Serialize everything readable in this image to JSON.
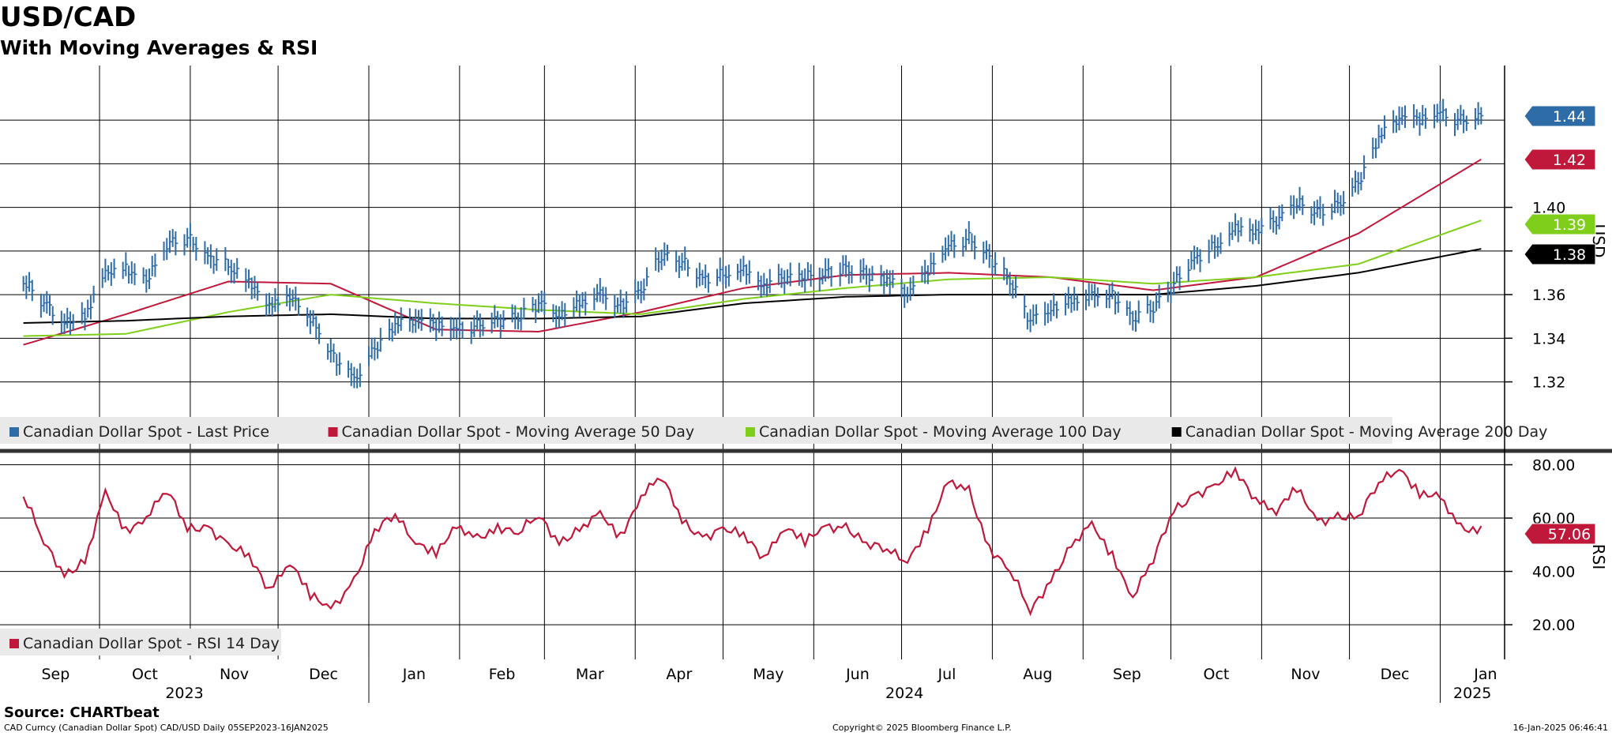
{
  "header": {
    "title": "USD/CAD",
    "subtitle": "With Moving Averages & RSI"
  },
  "footer": {
    "source": "Source: CHARTbeat",
    "security": "CAD Curncy (Canadian Dollar Spot) CAD/USD  Daily 05SEP2023-16JAN2025",
    "copyright": "Copyright© 2025 Bloomberg Finance L.P.",
    "timestamp": "16-Jan-2025 06:46:41"
  },
  "colors": {
    "price": "#2e6ca8",
    "ma50": "#c0183a",
    "ma100": "#7fcf1a",
    "ma200": "#000000",
    "rsi": "#c0183a"
  },
  "chart_data": [
    {
      "type": "line",
      "panel": "price",
      "ylabel": "USD",
      "ylim": [
        1.305,
        1.465
      ],
      "yticks": [
        1.32,
        1.34,
        1.36,
        1.38,
        1.4
      ],
      "ytick_labels": [
        "1.32",
        "1.34",
        "1.36",
        "1.38",
        "1.40"
      ],
      "grid": true,
      "legend_position": "bottom-left",
      "legend": [
        {
          "label": "Canadian Dollar Spot - Last Price",
          "color": "#2e6ca8"
        },
        {
          "label": "Canadian Dollar Spot - Moving Average 50 Day",
          "color": "#c0183a"
        },
        {
          "label": "Canadian Dollar Spot - Moving Average 100 Day",
          "color": "#7fcf1a"
        },
        {
          "label": "Canadian Dollar Spot - Moving Average 200 Day",
          "color": "#000000"
        }
      ],
      "last_value_tags": [
        {
          "label": "1.44",
          "value": 1.442,
          "color": "#2e6ca8"
        },
        {
          "label": "1.42",
          "value": 1.422,
          "color": "#c0183a"
        },
        {
          "label": "1.39",
          "value": 1.394,
          "color": "#7fcf1a"
        },
        {
          "label": "1.38",
          "value": 1.381,
          "color": "#000000"
        }
      ],
      "series": [
        {
          "name": "Canadian Dollar Spot - Last Price",
          "style": "bars",
          "x": [
            "2023-09-05",
            "2023-09-12",
            "2023-09-19",
            "2023-09-26",
            "2023-10-03",
            "2023-10-10",
            "2023-10-17",
            "2023-10-24",
            "2023-10-31",
            "2023-11-07",
            "2023-11-14",
            "2023-11-21",
            "2023-11-28",
            "2023-12-05",
            "2023-12-12",
            "2023-12-19",
            "2023-12-27",
            "2024-01-03",
            "2024-01-10",
            "2024-01-17",
            "2024-01-24",
            "2024-01-31",
            "2024-02-07",
            "2024-02-14",
            "2024-02-21",
            "2024-02-28",
            "2024-03-06",
            "2024-03-13",
            "2024-03-20",
            "2024-03-27",
            "2024-04-03",
            "2024-04-10",
            "2024-04-17",
            "2024-04-24",
            "2024-05-01",
            "2024-05-08",
            "2024-05-15",
            "2024-05-22",
            "2024-05-29",
            "2024-06-05",
            "2024-06-12",
            "2024-06-19",
            "2024-06-26",
            "2024-07-03",
            "2024-07-10",
            "2024-07-17",
            "2024-07-24",
            "2024-07-31",
            "2024-08-07",
            "2024-08-14",
            "2024-08-21",
            "2024-08-28",
            "2024-09-04",
            "2024-09-11",
            "2024-09-18",
            "2024-09-25",
            "2024-10-02",
            "2024-10-09",
            "2024-10-16",
            "2024-10-23",
            "2024-10-30",
            "2024-11-06",
            "2024-11-13",
            "2024-11-20",
            "2024-11-27",
            "2024-12-04",
            "2024-12-11",
            "2024-12-18",
            "2024-12-25",
            "2025-01-01",
            "2025-01-08",
            "2025-01-15"
          ],
          "y": [
            1.365,
            1.356,
            1.349,
            1.35,
            1.368,
            1.372,
            1.368,
            1.382,
            1.386,
            1.379,
            1.372,
            1.364,
            1.356,
            1.361,
            1.348,
            1.333,
            1.322,
            1.334,
            1.345,
            1.35,
            1.347,
            1.343,
            1.346,
            1.349,
            1.348,
            1.356,
            1.352,
            1.356,
            1.359,
            1.355,
            1.363,
            1.377,
            1.375,
            1.369,
            1.368,
            1.37,
            1.365,
            1.369,
            1.367,
            1.37,
            1.373,
            1.368,
            1.366,
            1.362,
            1.372,
            1.381,
            1.386,
            1.378,
            1.365,
            1.348,
            1.355,
            1.357,
            1.358,
            1.36,
            1.35,
            1.353,
            1.365,
            1.378,
            1.381,
            1.389,
            1.39,
            1.395,
            1.401,
            1.398,
            1.402,
            1.41,
            1.431,
            1.443,
            1.441,
            1.442,
            1.44,
            1.442
          ]
        },
        {
          "name": "Canadian Dollar Spot - Moving Average 50 Day",
          "x": [
            "2023-09-05",
            "2023-10-10",
            "2023-11-14",
            "2023-12-19",
            "2024-01-24",
            "2024-02-28",
            "2024-04-03",
            "2024-05-08",
            "2024-06-12",
            "2024-07-17",
            "2024-08-21",
            "2024-09-25",
            "2024-10-30",
            "2024-12-04",
            "2025-01-15"
          ],
          "y": [
            1.337,
            1.351,
            1.366,
            1.365,
            1.344,
            1.343,
            1.352,
            1.363,
            1.369,
            1.37,
            1.368,
            1.362,
            1.368,
            1.388,
            1.422
          ]
        },
        {
          "name": "Canadian Dollar Spot - Moving Average 100 Day",
          "x": [
            "2023-09-05",
            "2023-10-10",
            "2023-11-14",
            "2023-12-19",
            "2024-01-24",
            "2024-02-28",
            "2024-04-03",
            "2024-05-08",
            "2024-06-12",
            "2024-07-17",
            "2024-08-21",
            "2024-09-25",
            "2024-10-30",
            "2024-12-04",
            "2025-01-15"
          ],
          "y": [
            1.341,
            1.342,
            1.352,
            1.36,
            1.356,
            1.353,
            1.351,
            1.358,
            1.363,
            1.367,
            1.368,
            1.365,
            1.368,
            1.374,
            1.394
          ]
        },
        {
          "name": "Canadian Dollar Spot - Moving Average 200 Day",
          "x": [
            "2023-09-05",
            "2023-10-10",
            "2023-11-14",
            "2023-12-19",
            "2024-01-24",
            "2024-02-28",
            "2024-04-03",
            "2024-05-08",
            "2024-06-12",
            "2024-07-17",
            "2024-08-21",
            "2024-09-25",
            "2024-10-30",
            "2024-12-04",
            "2025-01-15"
          ],
          "y": [
            1.347,
            1.348,
            1.35,
            1.351,
            1.349,
            1.349,
            1.35,
            1.356,
            1.359,
            1.36,
            1.36,
            1.36,
            1.364,
            1.37,
            1.381
          ]
        }
      ]
    },
    {
      "type": "line",
      "panel": "rsi",
      "ylabel": "RSI",
      "ylim": [
        7,
        84
      ],
      "yticks": [
        20,
        40,
        60,
        80
      ],
      "ytick_labels": [
        "20.00",
        "40.00",
        "60.00",
        "80.00"
      ],
      "grid": true,
      "legend_position": "bottom-left",
      "legend": [
        {
          "label": "Canadian Dollar Spot - RSI 14 Day",
          "color": "#c0183a"
        }
      ],
      "last_value_tags": [
        {
          "label": "57.06",
          "value": 57.06,
          "color": "#c0183a"
        }
      ],
      "series": [
        {
          "name": "Canadian Dollar Spot - RSI 14 Day",
          "x": [
            "2023-09-05",
            "2023-09-12",
            "2023-09-19",
            "2023-09-26",
            "2023-10-03",
            "2023-10-10",
            "2023-10-17",
            "2023-10-24",
            "2023-10-31",
            "2023-11-07",
            "2023-11-14",
            "2023-11-21",
            "2023-11-28",
            "2023-12-05",
            "2023-12-12",
            "2023-12-19",
            "2023-12-27",
            "2024-01-03",
            "2024-01-10",
            "2024-01-17",
            "2024-01-24",
            "2024-01-31",
            "2024-02-07",
            "2024-02-14",
            "2024-02-21",
            "2024-02-28",
            "2024-03-06",
            "2024-03-13",
            "2024-03-20",
            "2024-03-27",
            "2024-04-03",
            "2024-04-10",
            "2024-04-17",
            "2024-04-24",
            "2024-05-01",
            "2024-05-08",
            "2024-05-15",
            "2024-05-22",
            "2024-05-29",
            "2024-06-05",
            "2024-06-12",
            "2024-06-19",
            "2024-06-26",
            "2024-07-03",
            "2024-07-10",
            "2024-07-17",
            "2024-07-24",
            "2024-07-31",
            "2024-08-07",
            "2024-08-14",
            "2024-08-21",
            "2024-08-28",
            "2024-09-04",
            "2024-09-11",
            "2024-09-18",
            "2024-09-25",
            "2024-10-02",
            "2024-10-09",
            "2024-10-16",
            "2024-10-23",
            "2024-10-30",
            "2024-11-06",
            "2024-11-13",
            "2024-11-20",
            "2024-11-27",
            "2024-12-04",
            "2024-12-11",
            "2024-12-18",
            "2024-12-25",
            "2025-01-01",
            "2025-01-08",
            "2025-01-15"
          ],
          "y": [
            68,
            50,
            40,
            44,
            68,
            55,
            62,
            70,
            55,
            58,
            50,
            44,
            34,
            45,
            30,
            25,
            38,
            55,
            60,
            52,
            48,
            55,
            52,
            58,
            54,
            60,
            52,
            56,
            60,
            53,
            70,
            75,
            58,
            54,
            56,
            52,
            46,
            58,
            50,
            56,
            58,
            50,
            47,
            45,
            57,
            72,
            70,
            50,
            40,
            24,
            38,
            50,
            56,
            46,
            32,
            44,
            62,
            70,
            72,
            76,
            68,
            64,
            70,
            58,
            62,
            60,
            72,
            80,
            70,
            66,
            56,
            57.06
          ]
        }
      ]
    }
  ],
  "axis": {
    "months": [
      "Sep",
      "Oct",
      "Nov",
      "Dec",
      "Jan",
      "Feb",
      "Mar",
      "Apr",
      "May",
      "Jun",
      "Jul",
      "Aug",
      "Sep",
      "Oct",
      "Nov",
      "Dec",
      "Jan"
    ],
    "years": [
      "2023",
      "2024",
      "2025"
    ]
  }
}
